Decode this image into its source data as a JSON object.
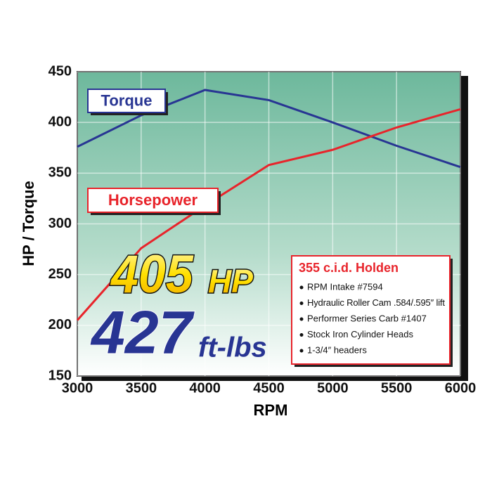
{
  "chart_data": {
    "type": "line",
    "x": [
      3000,
      3500,
      4000,
      4500,
      5000,
      5500,
      6000
    ],
    "series": [
      {
        "name": "Torque",
        "color": "#283593",
        "values": [
          376,
          407,
          432,
          422,
          400,
          377,
          356
        ]
      },
      {
        "name": "Horsepower",
        "color": "#e8242b",
        "values": [
          205,
          276,
          318,
          358,
          373,
          395,
          413
        ]
      }
    ],
    "xlim": [
      3000,
      6000
    ],
    "xticks": [
      3000,
      3500,
      4000,
      4500,
      5000,
      5500,
      6000
    ],
    "ylim": [
      150,
      450
    ],
    "yticks": [
      150,
      200,
      250,
      300,
      350,
      400,
      450
    ],
    "grid": true,
    "xlabel": "RPM",
    "ylabel": "HP / Torque",
    "headline": {
      "hp": "405",
      "hp_unit": "HP",
      "torque": "427",
      "torque_unit": "ft-lbs"
    },
    "spec_box": {
      "title": "355 c.i.d. Holden",
      "items": [
        "RPM Intake #7594",
        "Hydraulic Roller Cam .584/.595″ lift",
        "Performer Series Carb #1407",
        "Stock Iron Cylinder Heads",
        "1-3/4″ headers"
      ]
    }
  }
}
